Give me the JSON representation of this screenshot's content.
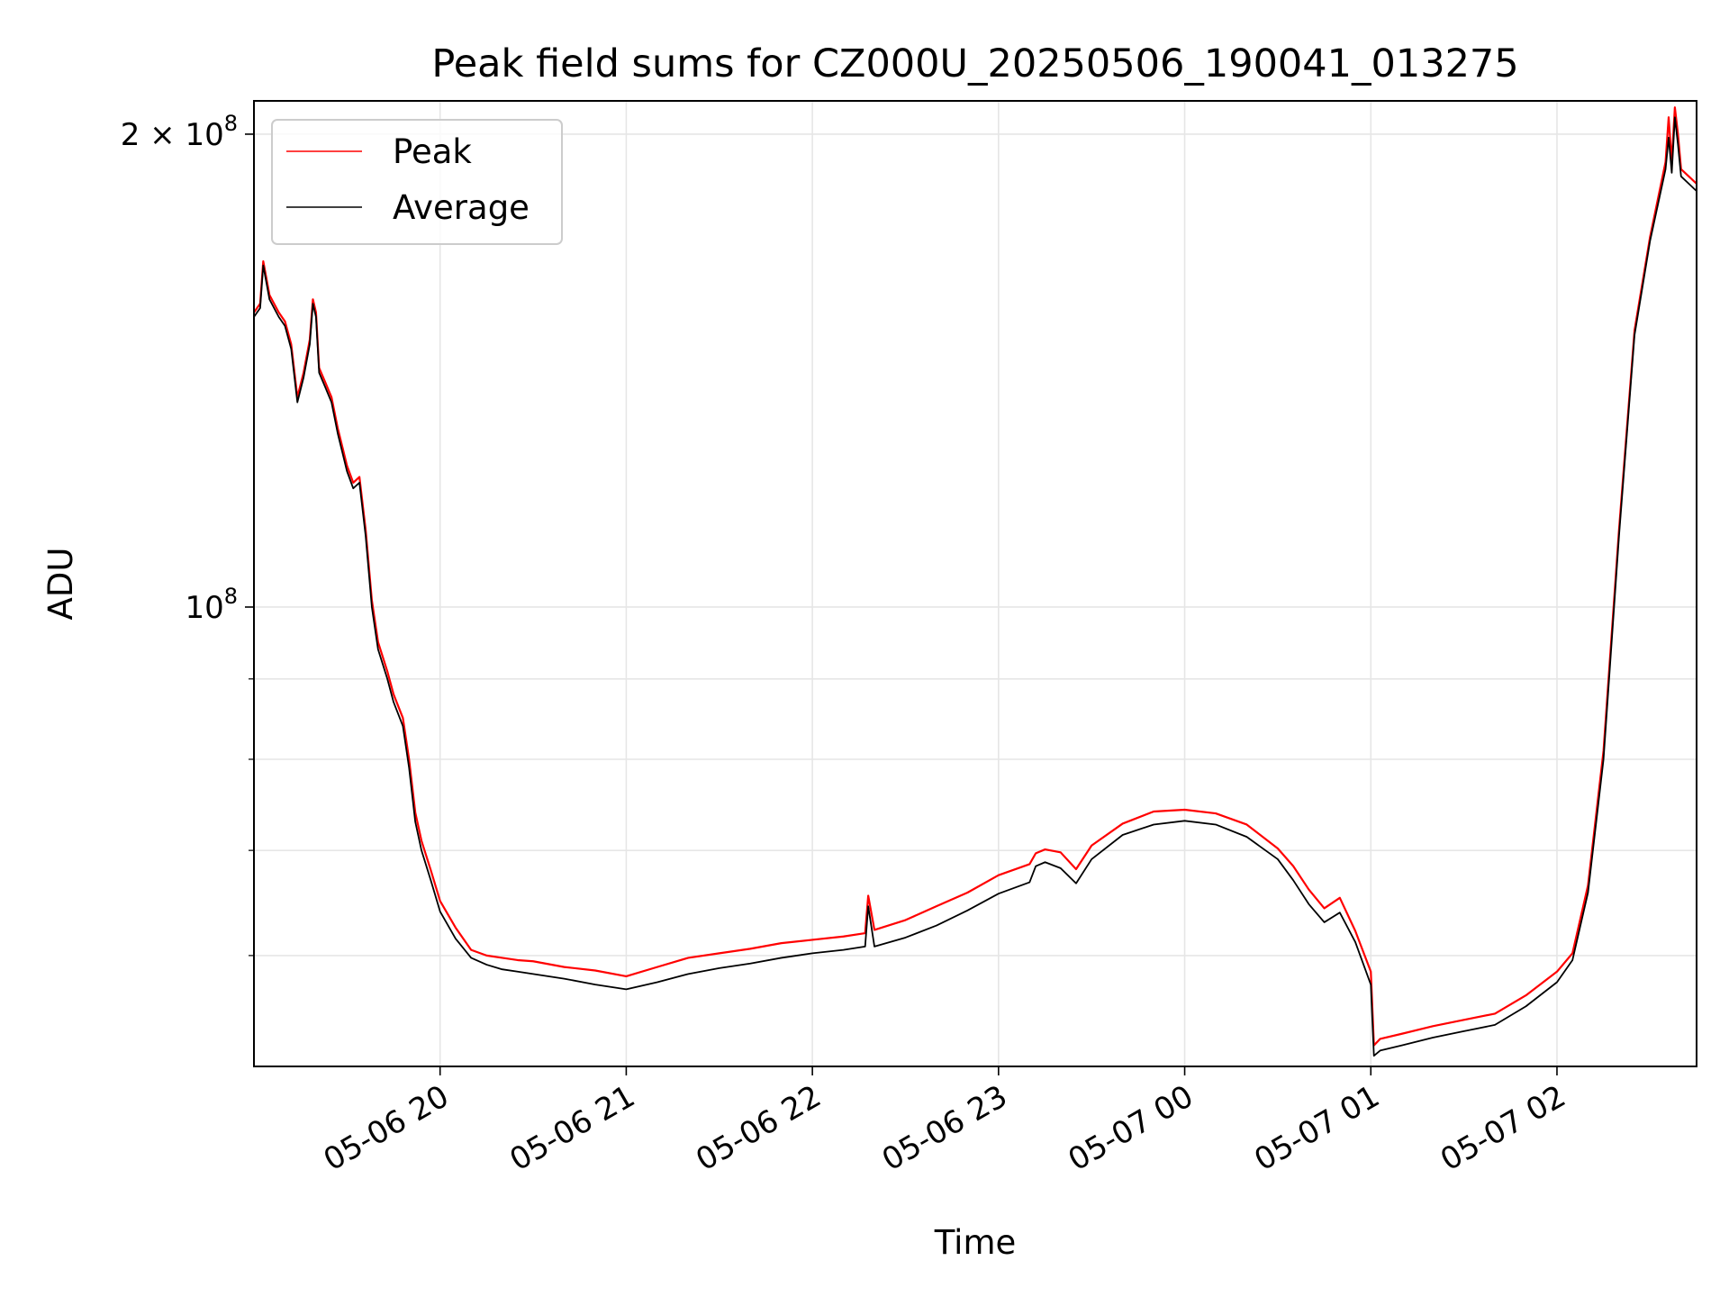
{
  "chart_data": {
    "type": "line",
    "title": "Peak field sums for CZ000U_20250506_190041_013275",
    "xlabel": "Time",
    "ylabel": "ADU",
    "yscale": "log",
    "grid": true,
    "legend_position": "upper-left",
    "xlim": [
      "2025-05-06 19:00",
      "2025-05-07 02:45"
    ],
    "ylim": [
      51000000,
      210000000
    ],
    "x_ticks": [
      "05-06 20",
      "05-06 21",
      "05-06 22",
      "05-06 23",
      "05-07 00",
      "05-07 01",
      "05-07 02"
    ],
    "y_tick_labels": [
      {
        "value": 100000000,
        "label": "10^8",
        "base": "10",
        "exp": "8"
      },
      {
        "value": 200000000,
        "label": "2 × 10^8",
        "base": "2 × 10",
        "exp": "8"
      }
    ],
    "y_minor_ticks": [
      60000000,
      70000000,
      80000000,
      90000000
    ],
    "x": [
      "2025-05-06 19:00",
      "2025-05-06 19:02",
      "2025-05-06 19:03",
      "2025-05-06 19:05",
      "2025-05-06 19:08",
      "2025-05-06 19:10",
      "2025-05-06 19:12",
      "2025-05-06 19:14",
      "2025-05-06 19:16",
      "2025-05-06 19:18",
      "2025-05-06 19:19",
      "2025-05-06 19:20",
      "2025-05-06 19:21",
      "2025-05-06 19:23",
      "2025-05-06 19:25",
      "2025-05-06 19:27",
      "2025-05-06 19:30",
      "2025-05-06 19:32",
      "2025-05-06 19:34",
      "2025-05-06 19:36",
      "2025-05-06 19:38",
      "2025-05-06 19:40",
      "2025-05-06 19:43",
      "2025-05-06 19:45",
      "2025-05-06 19:48",
      "2025-05-06 19:50",
      "2025-05-06 19:52",
      "2025-05-06 19:54",
      "2025-05-06 19:57",
      "2025-05-06 20:00",
      "2025-05-06 20:05",
      "2025-05-06 20:10",
      "2025-05-06 20:15",
      "2025-05-06 20:20",
      "2025-05-06 20:25",
      "2025-05-06 20:30",
      "2025-05-06 20:40",
      "2025-05-06 20:50",
      "2025-05-06 21:00",
      "2025-05-06 21:10",
      "2025-05-06 21:20",
      "2025-05-06 21:30",
      "2025-05-06 21:40",
      "2025-05-06 21:50",
      "2025-05-06 22:00",
      "2025-05-06 22:10",
      "2025-05-06 22:17",
      "2025-05-06 22:18",
      "2025-05-06 22:20",
      "2025-05-06 22:30",
      "2025-05-06 22:40",
      "2025-05-06 22:50",
      "2025-05-06 23:00",
      "2025-05-06 23:10",
      "2025-05-06 23:12",
      "2025-05-06 23:15",
      "2025-05-06 23:20",
      "2025-05-06 23:25",
      "2025-05-06 23:30",
      "2025-05-06 23:40",
      "2025-05-06 23:50",
      "2025-05-07 00:00",
      "2025-05-07 00:10",
      "2025-05-07 00:20",
      "2025-05-07 00:30",
      "2025-05-07 00:35",
      "2025-05-07 00:40",
      "2025-05-07 00:45",
      "2025-05-07 00:50",
      "2025-05-07 00:55",
      "2025-05-07 01:00",
      "2025-05-07 01:01",
      "2025-05-07 01:03",
      "2025-05-07 01:10",
      "2025-05-07 01:20",
      "2025-05-07 01:30",
      "2025-05-07 01:40",
      "2025-05-07 01:50",
      "2025-05-07 02:00",
      "2025-05-07 02:05",
      "2025-05-07 02:10",
      "2025-05-07 02:15",
      "2025-05-07 02:20",
      "2025-05-07 02:25",
      "2025-05-07 02:30",
      "2025-05-07 02:35",
      "2025-05-07 02:36",
      "2025-05-07 02:37",
      "2025-05-07 02:38",
      "2025-05-07 02:39",
      "2025-05-07 02:40",
      "2025-05-07 02:45"
    ],
    "series": [
      {
        "name": "Peak",
        "color": "#ff0000",
        "values": [
          154000000,
          156000000,
          166000000,
          158000000,
          154000000,
          152000000,
          147000000,
          136000000,
          141000000,
          148000000,
          157000000,
          154000000,
          142000000,
          139000000,
          136000000,
          130000000,
          123000000,
          120000000,
          121000000,
          112000000,
          101000000,
          95000000,
          91000000,
          88000000,
          85000000,
          80000000,
          74000000,
          71000000,
          68000000,
          65000000,
          62500000,
          60500000,
          60000000,
          59800000,
          59600000,
          59500000,
          59000000,
          58700000,
          58200000,
          59000000,
          59800000,
          60200000,
          60600000,
          61100000,
          61400000,
          61700000,
          62000000,
          65500000,
          62300000,
          63200000,
          64500000,
          65800000,
          67500000,
          68600000,
          69700000,
          70100000,
          69800000,
          68100000,
          70500000,
          72800000,
          74100000,
          74300000,
          73900000,
          72700000,
          70200000,
          68400000,
          66100000,
          64300000,
          65300000,
          62200000,
          58600000,
          52600000,
          53100000,
          53500000,
          54100000,
          54600000,
          55100000,
          56600000,
          58600000,
          60200000,
          66500000,
          81000000,
          112000000,
          150000000,
          172000000,
          192000000,
          205000000,
          192000000,
          208000000,
          200000000,
          190000000,
          186000000
        ]
      },
      {
        "name": "Average",
        "color": "#000000",
        "values": [
          153000000,
          155000000,
          165000000,
          157000000,
          153000000,
          151000000,
          146000000,
          135000000,
          140000000,
          147000000,
          156000000,
          153000000,
          141000000,
          138000000,
          135000000,
          129000000,
          122000000,
          119000000,
          120000000,
          111000000,
          100000000,
          94000000,
          90000000,
          87000000,
          84000000,
          79000000,
          73000000,
          70000000,
          67000000,
          64000000,
          61500000,
          59800000,
          59200000,
          58800000,
          58600000,
          58400000,
          58000000,
          57500000,
          57100000,
          57700000,
          58400000,
          58900000,
          59300000,
          59800000,
          60200000,
          60500000,
          60800000,
          64500000,
          60800000,
          61600000,
          62700000,
          64100000,
          65700000,
          66800000,
          68400000,
          68800000,
          68200000,
          66700000,
          69100000,
          71600000,
          72700000,
          73100000,
          72700000,
          71400000,
          69100000,
          67000000,
          64700000,
          63000000,
          63900000,
          61200000,
          57500000,
          51800000,
          52200000,
          52600000,
          53200000,
          53700000,
          54200000,
          55700000,
          57700000,
          59600000,
          65800000,
          80000000,
          111000000,
          149000000,
          171000000,
          190000000,
          199000000,
          189000000,
          205000000,
          197000000,
          188000000,
          184000000
        ]
      }
    ]
  }
}
